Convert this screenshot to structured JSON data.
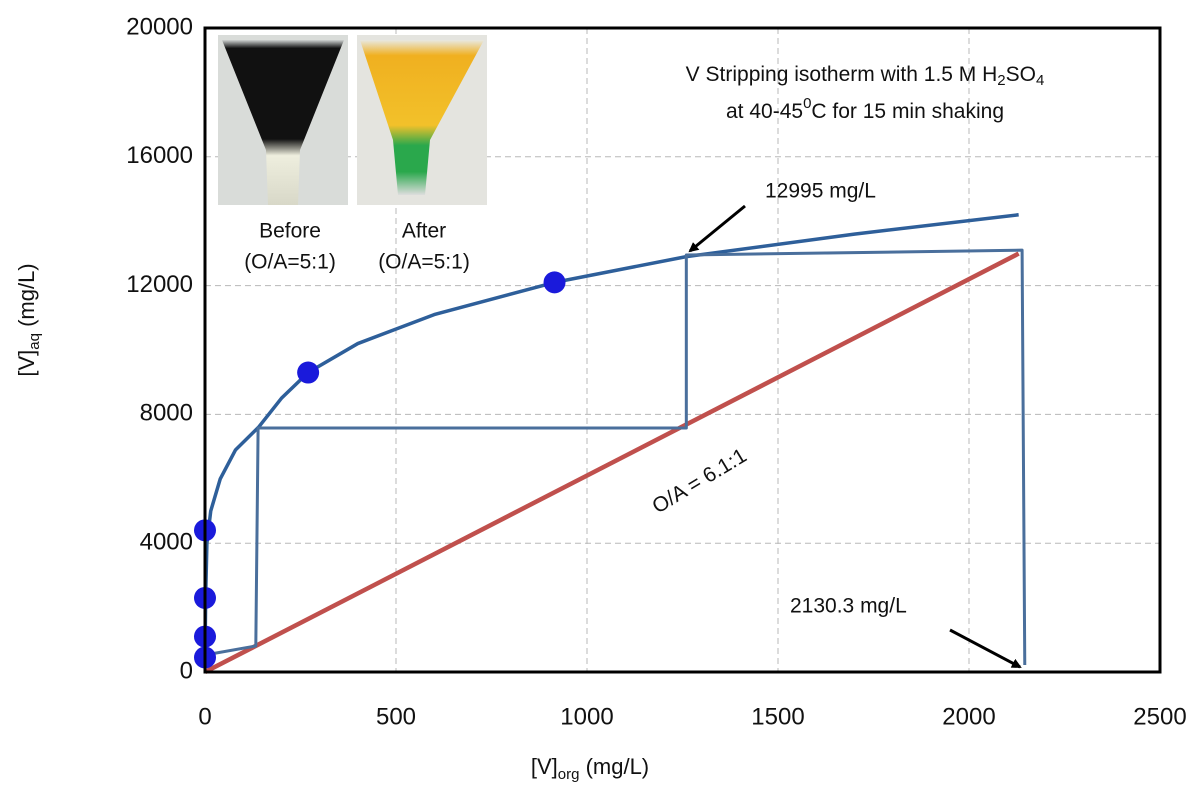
{
  "chart_data": {
    "type": "scatter",
    "x_label": {
      "main": "[V]",
      "sub": "org",
      "unit": " (mg/L)"
    },
    "y_label": {
      "main": "[V]",
      "sub": "aq",
      "unit": " (mg/L)"
    },
    "xlim": [
      0,
      2500
    ],
    "ylim": [
      0,
      20000
    ],
    "xticks": [
      0,
      500,
      1000,
      1500,
      2000,
      2500
    ],
    "yticks": [
      0,
      4000,
      8000,
      12000,
      16000,
      20000
    ],
    "grid": true,
    "series": [
      {
        "mode": "line",
        "color": "#2e5f9a",
        "width": 3.5,
        "x": [
          0,
          2,
          5,
          15,
          40,
          80,
          140,
          200,
          270,
          400,
          600,
          915,
          1260,
          1700,
          2130
        ],
        "y": [
          500,
          2500,
          4000,
          5000,
          6000,
          6900,
          7600,
          8500,
          9300,
          10200,
          11100,
          12100,
          12900,
          13600,
          14200
        ]
      },
      {
        "mode": "line",
        "color": "#c0504d",
        "width": 4.5,
        "x": [
          0,
          2130
        ],
        "y": [
          0,
          12995
        ]
      },
      {
        "mode": "line",
        "color": "#4a6f9c",
        "width": 3,
        "x": [
          0,
          133,
          139,
          1260,
          1260,
          2139,
          2146
        ],
        "y": [
          528,
          807,
          7578,
          7578,
          12950,
          13100,
          217
        ]
      },
      {
        "mode": "markers",
        "color": "#1a1adb",
        "size": 11,
        "x": [
          0,
          0,
          0,
          0,
          270,
          915
        ],
        "y": [
          450,
          1100,
          2300,
          4400,
          9300,
          12100
        ]
      }
    ],
    "annotations": {
      "title_line1": {
        "a": "V Stripping isotherm with 1.5 M H",
        "b": "2",
        "c": "SO",
        "d": "4"
      },
      "title_line2": {
        "a": "at 40-45",
        "b": "0",
        "c": "C for 15 min shaking"
      },
      "top_point": "12995 mg/L",
      "end_point": "2130.3 mg/L",
      "operating_line": "O/A = 6.1:1",
      "before": "Before",
      "before_ratio": "(O/A=5:1)",
      "after": "After",
      "after_ratio": "(O/A=5:1)"
    }
  }
}
